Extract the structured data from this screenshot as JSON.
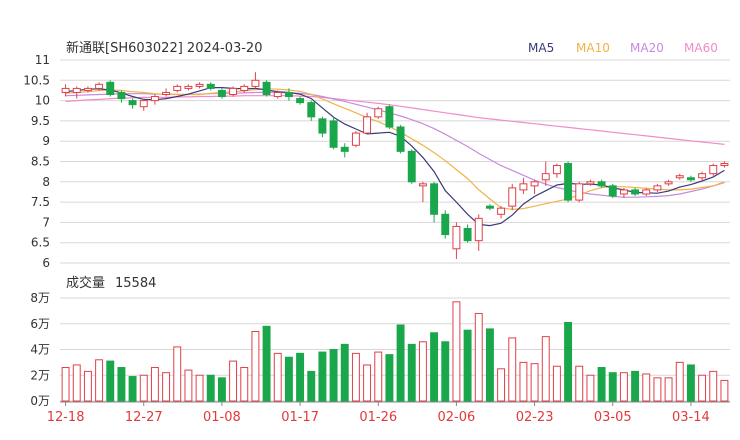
{
  "header": {
    "title": "新通联[SH603022]  2024-03-20"
  },
  "legend": [
    {
      "label": "MA5",
      "color": "#3a3a7a"
    },
    {
      "label": "MA10",
      "color": "#f2b24a"
    },
    {
      "label": "MA20",
      "color": "#c78ae0"
    },
    {
      "label": "MA60",
      "color": "#f08cc8"
    }
  ],
  "volume_header": {
    "label": "成交量",
    "value": "15584"
  },
  "colors": {
    "up": "#e0404a",
    "down": "#1aa64a",
    "grid": "#d7d7d7",
    "axis": "#333333",
    "date": "#e03a3a"
  },
  "chart_data": [
    {
      "type": "candlestick",
      "y_ticks": [
        "11",
        "10.5",
        "10",
        "9.5",
        "9",
        "8.5",
        "8",
        "7.5",
        "7",
        "6.5",
        "6"
      ],
      "ylim": [
        6,
        11
      ],
      "grid": true,
      "candles": [
        [
          10.2,
          10.3,
          10.4,
          10.1
        ],
        [
          10.2,
          10.3,
          10.35,
          10.05
        ],
        [
          10.25,
          10.3,
          10.35,
          10.2
        ],
        [
          10.3,
          10.4,
          10.45,
          10.25
        ],
        [
          10.45,
          10.15,
          10.5,
          10.1
        ],
        [
          10.2,
          10.05,
          10.25,
          9.95
        ],
        [
          10.0,
          9.9,
          10.05,
          9.8
        ],
        [
          9.85,
          10.0,
          10.05,
          9.75
        ],
        [
          10.0,
          10.1,
          10.15,
          9.9
        ],
        [
          10.15,
          10.2,
          10.3,
          10.1
        ],
        [
          10.25,
          10.35,
          10.4,
          10.2
        ],
        [
          10.3,
          10.35,
          10.4,
          10.25
        ],
        [
          10.35,
          10.4,
          10.45,
          10.3
        ],
        [
          10.4,
          10.3,
          10.45,
          10.25
        ],
        [
          10.25,
          10.1,
          10.3,
          10.05
        ],
        [
          10.15,
          10.3,
          10.35,
          10.1
        ],
        [
          10.25,
          10.35,
          10.4,
          10.2
        ],
        [
          10.35,
          10.5,
          10.7,
          10.3
        ],
        [
          10.45,
          10.15,
          10.5,
          10.1
        ],
        [
          10.1,
          10.2,
          10.25,
          10.05
        ],
        [
          10.2,
          10.1,
          10.3,
          10.0
        ],
        [
          10.05,
          9.95,
          10.1,
          9.9
        ],
        [
          9.95,
          9.6,
          10.0,
          9.5
        ],
        [
          9.55,
          9.2,
          9.6,
          9.1
        ],
        [
          9.5,
          8.85,
          9.6,
          8.8
        ],
        [
          8.85,
          8.75,
          8.95,
          8.6
        ],
        [
          8.9,
          9.2,
          9.25,
          8.85
        ],
        [
          9.2,
          9.6,
          9.7,
          9.2
        ],
        [
          9.6,
          9.8,
          9.85,
          9.55
        ],
        [
          9.85,
          9.35,
          9.9,
          9.3
        ],
        [
          9.35,
          8.75,
          9.4,
          8.7
        ],
        [
          8.75,
          8.0,
          8.8,
          7.95
        ],
        [
          7.9,
          7.95,
          8.0,
          7.5
        ],
        [
          7.95,
          7.2,
          8.0,
          7.0
        ],
        [
          7.2,
          6.7,
          7.3,
          6.6
        ],
        [
          6.35,
          6.9,
          7.0,
          6.1
        ],
        [
          6.85,
          6.55,
          6.95,
          6.5
        ],
        [
          6.55,
          7.1,
          7.2,
          6.3
        ],
        [
          7.4,
          7.35,
          7.45,
          7.3
        ],
        [
          7.2,
          7.35,
          7.4,
          7.1
        ],
        [
          7.4,
          7.85,
          7.95,
          7.3
        ],
        [
          7.8,
          7.95,
          8.1,
          7.7
        ],
        [
          7.9,
          8.0,
          8.05,
          7.7
        ],
        [
          8.05,
          8.2,
          8.5,
          7.9
        ],
        [
          8.2,
          8.4,
          8.45,
          8.1
        ],
        [
          8.45,
          7.55,
          8.5,
          7.5
        ],
        [
          7.55,
          7.95,
          8.0,
          7.5
        ],
        [
          7.95,
          8.0,
          8.05,
          7.9
        ],
        [
          8.0,
          7.9,
          8.05,
          7.85
        ],
        [
          7.9,
          7.65,
          7.95,
          7.6
        ],
        [
          7.7,
          7.8,
          7.85,
          7.6
        ],
        [
          7.8,
          7.7,
          7.85,
          7.65
        ],
        [
          7.7,
          7.8,
          7.85,
          7.65
        ],
        [
          7.8,
          7.9,
          7.95,
          7.75
        ],
        [
          7.95,
          8.0,
          8.05,
          7.9
        ],
        [
          8.1,
          8.15,
          8.2,
          8.05
        ],
        [
          8.1,
          8.05,
          8.15,
          8.0
        ],
        [
          8.1,
          8.2,
          8.25,
          8.0
        ],
        [
          8.2,
          8.4,
          8.45,
          8.15
        ],
        [
          8.4,
          8.45,
          8.5,
          8.35
        ]
      ],
      "ma5": [
        10.22,
        10.25,
        10.28,
        10.29,
        10.26,
        10.19,
        10.1,
        10.03,
        10.02,
        10.05,
        10.1,
        10.16,
        10.24,
        10.32,
        10.32,
        10.3,
        10.29,
        10.3,
        10.26,
        10.22,
        10.2,
        10.16,
        10.05,
        9.82,
        9.59,
        9.42,
        9.3,
        9.18,
        9.2,
        9.22,
        9.12,
        8.88,
        8.6,
        8.25,
        7.78,
        7.5,
        7.2,
        6.95,
        6.92,
        6.98,
        7.18,
        7.45,
        7.64,
        7.78,
        7.92,
        7.96,
        7.94,
        7.94,
        7.92,
        7.85,
        7.8,
        7.74,
        7.73,
        7.72,
        7.77,
        7.87,
        7.93,
        8.02,
        8.12,
        8.28
      ],
      "ma10": [
        10.18,
        10.2,
        10.22,
        10.25,
        10.26,
        10.25,
        10.22,
        10.2,
        10.17,
        10.15,
        10.15,
        10.15,
        10.15,
        10.18,
        10.2,
        10.22,
        10.24,
        10.27,
        10.29,
        10.28,
        10.26,
        10.23,
        10.15,
        10.04,
        9.92,
        9.81,
        9.7,
        9.58,
        9.48,
        9.36,
        9.22,
        9.06,
        8.9,
        8.72,
        8.52,
        8.3,
        8.08,
        7.8,
        7.58,
        7.36,
        7.32,
        7.34,
        7.4,
        7.46,
        7.52,
        7.58,
        7.68,
        7.78,
        7.86,
        7.88,
        7.88,
        7.86,
        7.84,
        7.82,
        7.8,
        7.8,
        7.82,
        7.86,
        7.9,
        8.0
      ],
      "ma20": [
        10.12,
        10.13,
        10.14,
        10.15,
        10.16,
        10.17,
        10.17,
        10.17,
        10.16,
        10.16,
        10.15,
        10.15,
        10.16,
        10.17,
        10.18,
        10.18,
        10.19,
        10.2,
        10.21,
        10.2,
        10.19,
        10.18,
        10.15,
        10.1,
        10.04,
        9.98,
        9.91,
        9.84,
        9.77,
        9.7,
        9.62,
        9.53,
        9.43,
        9.31,
        9.17,
        9.02,
        8.87,
        8.7,
        8.55,
        8.4,
        8.28,
        8.16,
        8.04,
        7.94,
        7.86,
        7.8,
        7.74,
        7.7,
        7.67,
        7.64,
        7.62,
        7.62,
        7.63,
        7.64,
        7.66,
        7.7,
        7.76,
        7.82,
        7.9,
        7.98
      ],
      "ma60": [
        9.98,
        10.0,
        10.02,
        10.03,
        10.05,
        10.06,
        10.07,
        10.08,
        10.08,
        10.08,
        10.09,
        10.09,
        10.1,
        10.1,
        10.11,
        10.11,
        10.12,
        10.12,
        10.12,
        10.12,
        10.12,
        10.11,
        10.1,
        10.08,
        10.05,
        10.02,
        9.99,
        9.96,
        9.93,
        9.9,
        9.86,
        9.82,
        9.78,
        9.74,
        9.7,
        9.66,
        9.62,
        9.58,
        9.55,
        9.52,
        9.49,
        9.46,
        9.43,
        9.4,
        9.37,
        9.34,
        9.31,
        9.28,
        9.25,
        9.22,
        9.19,
        9.16,
        9.13,
        9.1,
        9.07,
        9.04,
        9.01,
        8.98,
        8.95,
        8.92
      ]
    },
    {
      "type": "bar",
      "y_ticks": [
        "8万",
        "6万",
        "4万",
        "2万",
        "0万"
      ],
      "ylim": [
        0,
        80000
      ],
      "grid": true,
      "x_ticks": [
        {
          "label": "12-18",
          "index": 0
        },
        {
          "label": "12-27",
          "index": 7
        },
        {
          "label": "01-08",
          "index": 14
        },
        {
          "label": "01-17",
          "index": 21
        },
        {
          "label": "01-26",
          "index": 28
        },
        {
          "label": "02-06",
          "index": 35
        },
        {
          "label": "02-23",
          "index": 42
        },
        {
          "label": "03-05",
          "index": 49
        },
        {
          "label": "03-14",
          "index": 56
        }
      ],
      "values": [
        26000,
        28000,
        23000,
        32000,
        31000,
        26000,
        19000,
        20000,
        26000,
        22000,
        42000,
        24000,
        20000,
        20000,
        18000,
        31000,
        26000,
        54000,
        58000,
        37000,
        34000,
        37000,
        23000,
        38000,
        40000,
        44000,
        37000,
        28000,
        38000,
        36000,
        59000,
        44000,
        46000,
        53000,
        46000,
        77000,
        55000,
        68000,
        56000,
        25000,
        49000,
        30000,
        29000,
        50000,
        27000,
        61000,
        27000,
        20000,
        26000,
        22000,
        22000,
        23000,
        21000,
        18000,
        18000,
        30000,
        28000,
        20000,
        23000,
        16000
      ]
    }
  ]
}
